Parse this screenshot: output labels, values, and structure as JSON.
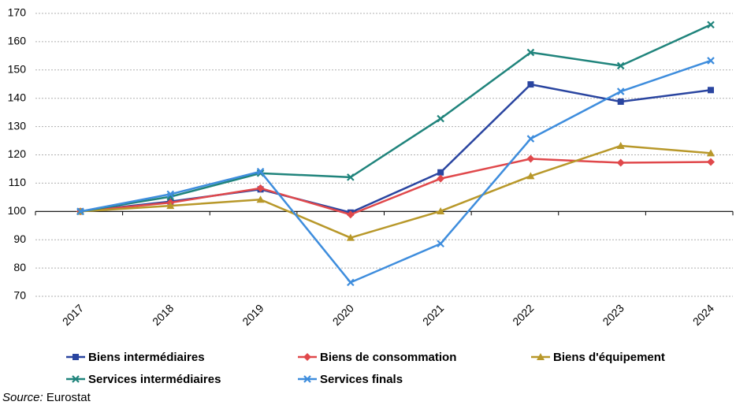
{
  "source": {
    "label": "Source:",
    "value": "Eurostat"
  },
  "chart_data": {
    "type": "line",
    "title": "",
    "xlabel": "",
    "ylabel": "",
    "categories": [
      "2017",
      "2018",
      "2019",
      "2020",
      "2021",
      "2022",
      "2023",
      "2024"
    ],
    "ylim": [
      70,
      170
    ],
    "yticks": [
      "70",
      "80",
      "90",
      "100",
      "110",
      "120",
      "130",
      "140",
      "150",
      "160",
      "170"
    ],
    "grid": true,
    "legend_position": "bottom",
    "series": [
      {
        "name": "Biens intermédiaires",
        "color": "#2A45A0",
        "marker": "square",
        "values": [
          100,
          103.5,
          107.8,
          99.6,
          113.8,
          144.9,
          138.8,
          142.9
        ]
      },
      {
        "name": "Biens de consommation",
        "color": "#E0484B",
        "marker": "diamond",
        "values": [
          100,
          103.1,
          108.2,
          98.9,
          111.6,
          118.6,
          117.2,
          117.5
        ]
      },
      {
        "name": "Biens d'équipement",
        "color": "#B8982A",
        "marker": "triangle",
        "values": [
          100,
          102.0,
          104.2,
          90.7,
          100.1,
          112.5,
          123.2,
          120.6
        ]
      },
      {
        "name": "Services intermédiaires",
        "color": "#20847C",
        "marker": "x",
        "values": [
          100,
          105.2,
          113.5,
          112.1,
          132.8,
          156.2,
          151.5,
          166.0
        ]
      },
      {
        "name": "Services finals",
        "color": "#3E8DDD",
        "marker": "x",
        "values": [
          100,
          106.1,
          114.1,
          74.9,
          88.6,
          125.7,
          142.4,
          153.3
        ]
      }
    ]
  }
}
